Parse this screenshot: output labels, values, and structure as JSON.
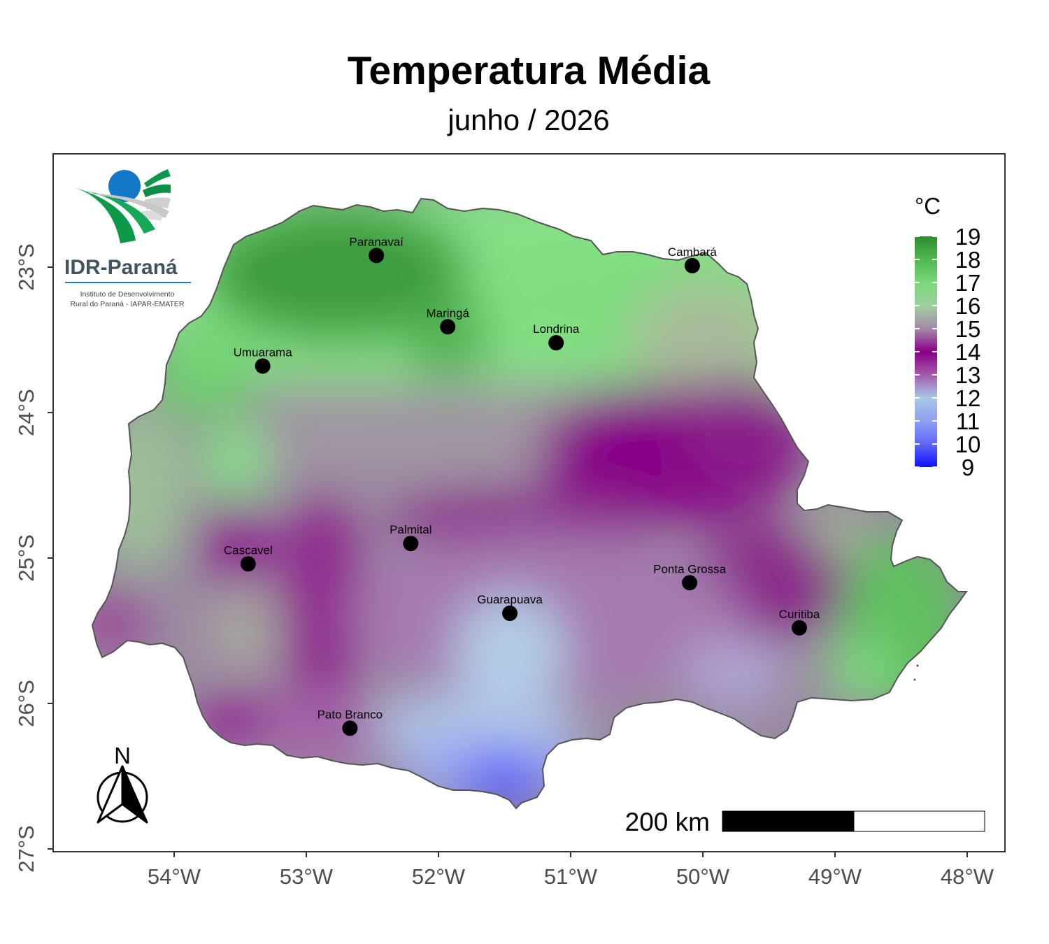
{
  "title": "Temperatura Média",
  "subtitle": "junho / 2026",
  "logo": {
    "name": "IDR-Paraná",
    "tagline_1": "Instituto de Desenvolvimento",
    "tagline_2": "Rural do Paraná - IAPAR-EMATER",
    "colors": [
      "#1a7fd1",
      "#0c9a4a",
      "#c9c9c9",
      "#3f5460"
    ]
  },
  "legend": {
    "title": "°C",
    "ticks": [
      "19",
      "18",
      "17",
      "16",
      "15",
      "14",
      "13",
      "12",
      "11",
      "10",
      "9"
    ],
    "colors": [
      "#2e8b2e",
      "#61c861",
      "#8fe88f",
      "#a8b89a",
      "#9a5aa0",
      "#880088",
      "#a866b0",
      "#a9c6e6",
      "#8aa0f0",
      "#5060f5",
      "#1010ff"
    ]
  },
  "scale_bar": {
    "label": "200 km"
  },
  "north_arrow": {
    "label": "N"
  },
  "axes": {
    "x_ticks": [
      "54°W",
      "53°W",
      "52°W",
      "51°W",
      "50°W",
      "49°W",
      "48°W"
    ],
    "y_ticks": [
      "23°S",
      "24°S",
      "25°S",
      "26°S",
      "27°S"
    ]
  },
  "cities": [
    {
      "name": "Paranavaí",
      "lon": -52.47,
      "lat": -22.92
    },
    {
      "name": "Cambará",
      "lon": -50.08,
      "lat": -22.99
    },
    {
      "name": "Maringá",
      "lon": -51.93,
      "lat": -23.41
    },
    {
      "name": "Londrina",
      "lon": -51.11,
      "lat": -23.52
    },
    {
      "name": "Umuarama",
      "lon": -53.33,
      "lat": -23.68
    },
    {
      "name": "Palmital",
      "lon": -52.21,
      "lat": -24.9
    },
    {
      "name": "Cascavel",
      "lon": -53.44,
      "lat": -25.04
    },
    {
      "name": "Ponta Grossa",
      "lon": -50.1,
      "lat": -25.17
    },
    {
      "name": "Guarapuava",
      "lon": -51.46,
      "lat": -25.38
    },
    {
      "name": "Curitiba",
      "lon": -49.27,
      "lat": -25.48
    },
    {
      "name": "Pato Branco",
      "lon": -52.67,
      "lat": -26.17
    }
  ]
}
